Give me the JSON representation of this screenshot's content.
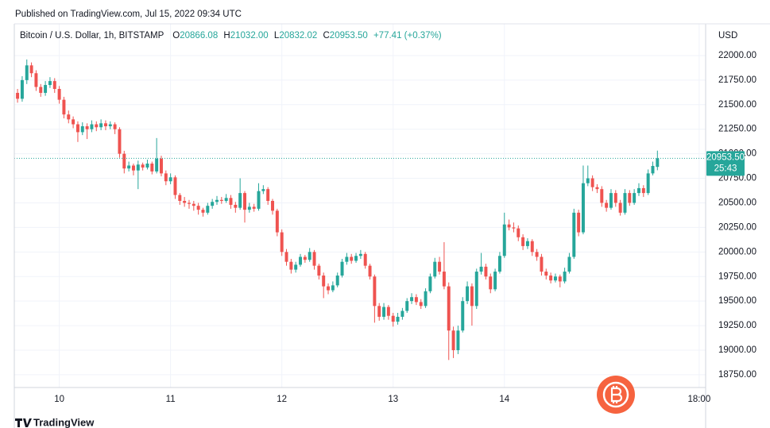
{
  "header": {
    "published": "Published on TradingView.com, Jul 15, 2022 09:34 UTC",
    "symbol": "Bitcoin / U.S. Dollar, 1h, BITSTAMP",
    "o_prefix": "O",
    "o": "20866.08",
    "h_prefix": "H",
    "h": "21032.00",
    "l_prefix": "L",
    "l": "20832.02",
    "c_prefix": "C",
    "c": "20953.50",
    "change": "+77.41 (+0.37%)",
    "currency": "USD"
  },
  "footer": {
    "brand": "TradingView"
  },
  "chart_data": {
    "type": "candlestick",
    "up_color": "#26a69a",
    "down_color": "#ef5350",
    "grid": true,
    "last_price_label": "20953.50",
    "countdown": "25:43",
    "xlim": [
      -0.7,
      148.4
    ],
    "xticks": [
      {
        "value": 9,
        "label": "10"
      },
      {
        "value": 33,
        "label": "11"
      },
      {
        "value": 57,
        "label": "12"
      },
      {
        "value": 81,
        "label": "13"
      },
      {
        "value": 105,
        "label": "14"
      },
      {
        "value": 147,
        "label": "18:00"
      }
    ],
    "ylim": [
      18620,
      22323
    ],
    "yticks": [
      {
        "value": 18750,
        "label": "18750.00"
      },
      {
        "value": 19000,
        "label": "19000.00"
      },
      {
        "value": 19250,
        "label": "19250.00"
      },
      {
        "value": 19500,
        "label": "19500.00"
      },
      {
        "value": 19750,
        "label": "19750.00"
      },
      {
        "value": 20000,
        "label": "20000.00"
      },
      {
        "value": 20250,
        "label": "20250.00"
      },
      {
        "value": 20500,
        "label": "20500.00"
      },
      {
        "value": 20750,
        "label": "20750.00"
      },
      {
        "value": 21000,
        "label": "21000.00"
      },
      {
        "value": 21250,
        "label": "21250.00"
      },
      {
        "value": 21500,
        "label": "21500.00"
      },
      {
        "value": 21750,
        "label": "21750.00"
      },
      {
        "value": 22000,
        "label": "22000.00"
      }
    ],
    "ohlc": [
      [
        21620,
        21660,
        21520,
        21560
      ],
      [
        21560,
        21790,
        21530,
        21750
      ],
      [
        21750,
        21960,
        21710,
        21900
      ],
      [
        21900,
        21930,
        21780,
        21820
      ],
      [
        21820,
        21850,
        21640,
        21680
      ],
      [
        21680,
        21710,
        21580,
        21620
      ],
      [
        21620,
        21740,
        21590,
        21700
      ],
      [
        21700,
        21780,
        21670,
        21740
      ],
      [
        21740,
        21770,
        21620,
        21660
      ],
      [
        21660,
        21690,
        21510,
        21550
      ],
      [
        21550,
        21580,
        21360,
        21400
      ],
      [
        21400,
        21440,
        21310,
        21350
      ],
      [
        21350,
        21380,
        21260,
        21300
      ],
      [
        21300,
        21330,
        21120,
        21220
      ],
      [
        21220,
        21320,
        21190,
        21280
      ],
      [
        21280,
        21310,
        21150,
        21250
      ],
      [
        21250,
        21340,
        21220,
        21300
      ],
      [
        21300,
        21330,
        21230,
        21270
      ],
      [
        21270,
        21350,
        21240,
        21310
      ],
      [
        21310,
        21340,
        21240,
        21280
      ],
      [
        21280,
        21330,
        21250,
        21300
      ],
      [
        21300,
        21320,
        21200,
        21250
      ],
      [
        21250,
        21270,
        20960,
        21000
      ],
      [
        21000,
        21030,
        20800,
        20850
      ],
      [
        20850,
        20920,
        20820,
        20880
      ],
      [
        20880,
        20900,
        20780,
        20830
      ],
      [
        20830,
        20930,
        20640,
        20890
      ],
      [
        20890,
        20910,
        20830,
        20860
      ],
      [
        20860,
        20940,
        20840,
        20900
      ],
      [
        20900,
        20920,
        20790,
        20820
      ],
      [
        20820,
        21160,
        20800,
        20950
      ],
      [
        20950,
        20980,
        20770,
        20800
      ],
      [
        20800,
        20830,
        20680,
        20720
      ],
      [
        20720,
        20800,
        20690,
        20760
      ],
      [
        20760,
        20780,
        20540,
        20580
      ],
      [
        20580,
        20600,
        20480,
        20520
      ],
      [
        20520,
        20560,
        20460,
        20500
      ],
      [
        20500,
        20530,
        20440,
        20490
      ],
      [
        20490,
        20520,
        20420,
        20470
      ],
      [
        20470,
        20500,
        20380,
        20430
      ],
      [
        20430,
        20450,
        20360,
        20400
      ],
      [
        20400,
        20500,
        20380,
        20470
      ],
      [
        20470,
        20540,
        20440,
        20510
      ],
      [
        20510,
        20570,
        20480,
        20530
      ],
      [
        20530,
        20560,
        20490,
        20520
      ],
      [
        20520,
        20590,
        20500,
        20550
      ],
      [
        20550,
        20580,
        20440,
        20480
      ],
      [
        20480,
        20510,
        20400,
        20450
      ],
      [
        20450,
        20750,
        20430,
        20600
      ],
      [
        20600,
        20620,
        20300,
        20430
      ],
      [
        20430,
        20500,
        20400,
        20460
      ],
      [
        20460,
        20490,
        20410,
        20440
      ],
      [
        20440,
        20700,
        20420,
        20620
      ],
      [
        20620,
        20680,
        20590,
        20640
      ],
      [
        20640,
        20660,
        20480,
        20520
      ],
      [
        20520,
        20540,
        20380,
        20420
      ],
      [
        20420,
        20440,
        20160,
        20200
      ],
      [
        20200,
        20230,
        19960,
        20000
      ],
      [
        20000,
        20030,
        19860,
        19900
      ],
      [
        19900,
        19930,
        19780,
        19820
      ],
      [
        19820,
        19900,
        19790,
        19870
      ],
      [
        19870,
        19980,
        19850,
        19950
      ],
      [
        19950,
        19970,
        19890,
        19920
      ],
      [
        19920,
        20040,
        19900,
        20000
      ],
      [
        20000,
        20020,
        19820,
        19860
      ],
      [
        19860,
        19880,
        19720,
        19760
      ],
      [
        19760,
        19790,
        19530,
        19650
      ],
      [
        19650,
        19680,
        19570,
        19610
      ],
      [
        19610,
        19700,
        19590,
        19660
      ],
      [
        19660,
        19790,
        19640,
        19760
      ],
      [
        19760,
        19930,
        19740,
        19900
      ],
      [
        19900,
        19990,
        19870,
        19950
      ],
      [
        19950,
        19980,
        19880,
        19910
      ],
      [
        19910,
        19990,
        19890,
        19960
      ],
      [
        19960,
        20020,
        19930,
        19980
      ],
      [
        19980,
        20000,
        19830,
        19860
      ],
      [
        19860,
        19880,
        19720,
        19750
      ],
      [
        19750,
        19770,
        19280,
        19450
      ],
      [
        19450,
        19480,
        19300,
        19340
      ],
      [
        19340,
        19480,
        19310,
        19440
      ],
      [
        19440,
        19460,
        19310,
        19350
      ],
      [
        19350,
        19380,
        19240,
        19290
      ],
      [
        19290,
        19380,
        19260,
        19340
      ],
      [
        19340,
        19430,
        19310,
        19400
      ],
      [
        19400,
        19530,
        19380,
        19500
      ],
      [
        19500,
        19580,
        19470,
        19540
      ],
      [
        19540,
        19570,
        19460,
        19490
      ],
      [
        19490,
        19520,
        19420,
        19450
      ],
      [
        19450,
        19630,
        19430,
        19600
      ],
      [
        19600,
        19780,
        19580,
        19750
      ],
      [
        19750,
        19940,
        19730,
        19900
      ],
      [
        19900,
        19950,
        19770,
        19800
      ],
      [
        19800,
        20100,
        19620,
        19650
      ],
      [
        19650,
        19690,
        18900,
        19200
      ],
      [
        19200,
        19240,
        18920,
        19000
      ],
      [
        19000,
        19250,
        18960,
        19200
      ],
      [
        19200,
        19540,
        19180,
        19500
      ],
      [
        19500,
        19700,
        19470,
        19650
      ],
      [
        19650,
        19680,
        19250,
        19450
      ],
      [
        19450,
        19830,
        19420,
        19800
      ],
      [
        19800,
        19990,
        19770,
        19850
      ],
      [
        19850,
        19880,
        19720,
        19750
      ],
      [
        19750,
        19780,
        19580,
        19620
      ],
      [
        19620,
        19830,
        19600,
        19800
      ],
      [
        19800,
        20000,
        19780,
        19960
      ],
      [
        19960,
        20400,
        19940,
        20280
      ],
      [
        20280,
        20330,
        20220,
        20250
      ],
      [
        20250,
        20300,
        20200,
        20240
      ],
      [
        20240,
        20270,
        20110,
        20150
      ],
      [
        20150,
        20180,
        20020,
        20060
      ],
      [
        20060,
        20140,
        20030,
        20110
      ],
      [
        20110,
        20130,
        19960,
        20000
      ],
      [
        20000,
        20030,
        19910,
        19950
      ],
      [
        19950,
        19980,
        19760,
        19800
      ],
      [
        19800,
        19830,
        19720,
        19760
      ],
      [
        19760,
        19790,
        19680,
        19710
      ],
      [
        19710,
        19780,
        19690,
        19750
      ],
      [
        19750,
        19770,
        19640,
        19700
      ],
      [
        19700,
        19840,
        19680,
        19800
      ],
      [
        19800,
        19990,
        19780,
        19950
      ],
      [
        19950,
        20440,
        19930,
        20400
      ],
      [
        20400,
        20430,
        20160,
        20200
      ],
      [
        20200,
        20880,
        20180,
        20700
      ],
      [
        20700,
        20880,
        20670,
        20750
      ],
      [
        20750,
        20780,
        20620,
        20660
      ],
      [
        20660,
        20690,
        20600,
        20640
      ],
      [
        20640,
        20670,
        20460,
        20500
      ],
      [
        20500,
        20530,
        20410,
        20450
      ],
      [
        20450,
        20640,
        20430,
        20600
      ],
      [
        20600,
        20630,
        20460,
        20500
      ],
      [
        20500,
        20530,
        20370,
        20400
      ],
      [
        20400,
        20640,
        20380,
        20600
      ],
      [
        20600,
        20630,
        20470,
        20500
      ],
      [
        20500,
        20640,
        20480,
        20600
      ],
      [
        20600,
        20700,
        20570,
        20650
      ],
      [
        20650,
        20680,
        20560,
        20600
      ],
      [
        20600,
        20840,
        20580,
        20800
      ],
      [
        20800,
        20920,
        20780,
        20876.09
      ],
      [
        20866.08,
        21032,
        20832.02,
        20953.5
      ]
    ]
  }
}
